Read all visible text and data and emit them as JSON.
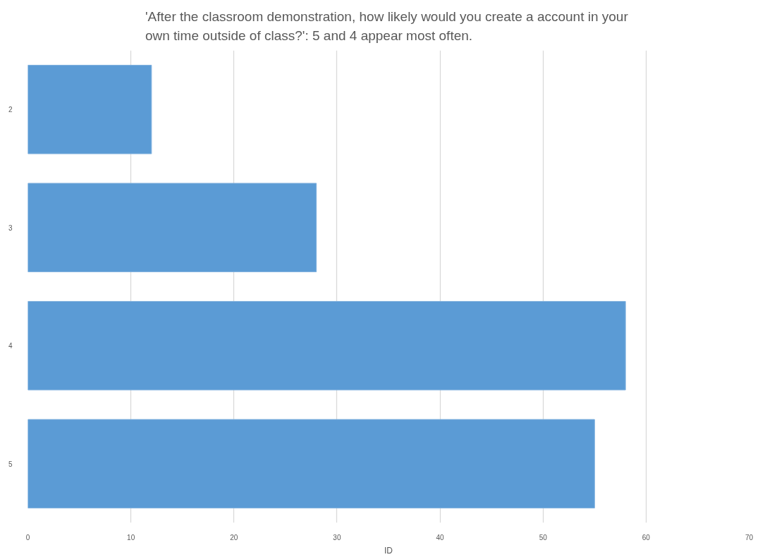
{
  "chart_data": {
    "type": "bar",
    "orientation": "horizontal",
    "title": "'After the classroom demonstration,  how likely would you create a account in your own time  outside of class?': 5 and 4 appear most often.",
    "xlabel": "ID",
    "categories": [
      "2",
      "3",
      "4",
      "5"
    ],
    "values": [
      12,
      28,
      58,
      55
    ],
    "color": "#5b9bd5",
    "xlim": [
      0,
      70
    ],
    "xticks": [
      0,
      10,
      20,
      30,
      40,
      50,
      60,
      70
    ],
    "grid": "x"
  }
}
